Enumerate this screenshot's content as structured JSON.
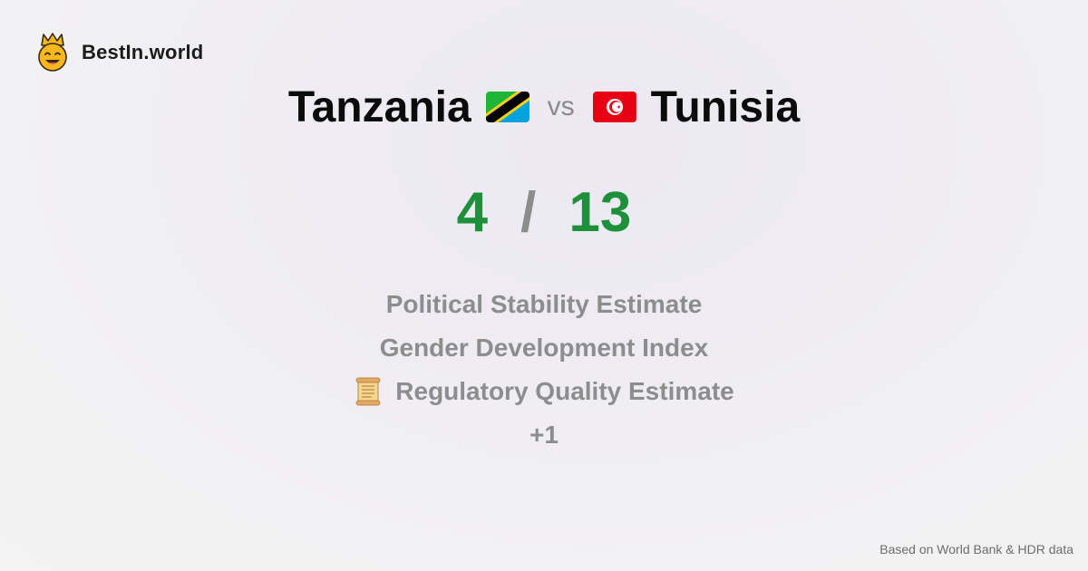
{
  "brand": {
    "name": "BestIn.world",
    "logo_icon": "crown-smiley-icon"
  },
  "comparison": {
    "left_country": "Tanzania",
    "left_flag_icon": "tanzania-flag-icon",
    "vs_label": "vs",
    "right_country": "Tunisia",
    "right_flag_icon": "tunisia-flag-icon"
  },
  "score": {
    "left": "4",
    "separator": "/",
    "right": "13",
    "color": "#1e8f3a"
  },
  "metrics": [
    {
      "label": "Political Stability Estimate"
    },
    {
      "label": "Gender Development Index"
    },
    {
      "label": "Regulatory Quality Estimate",
      "icon": "scroll-icon"
    },
    {
      "label": "+1"
    }
  ],
  "footer": {
    "source_text": "Based on World Bank & HDR data"
  }
}
